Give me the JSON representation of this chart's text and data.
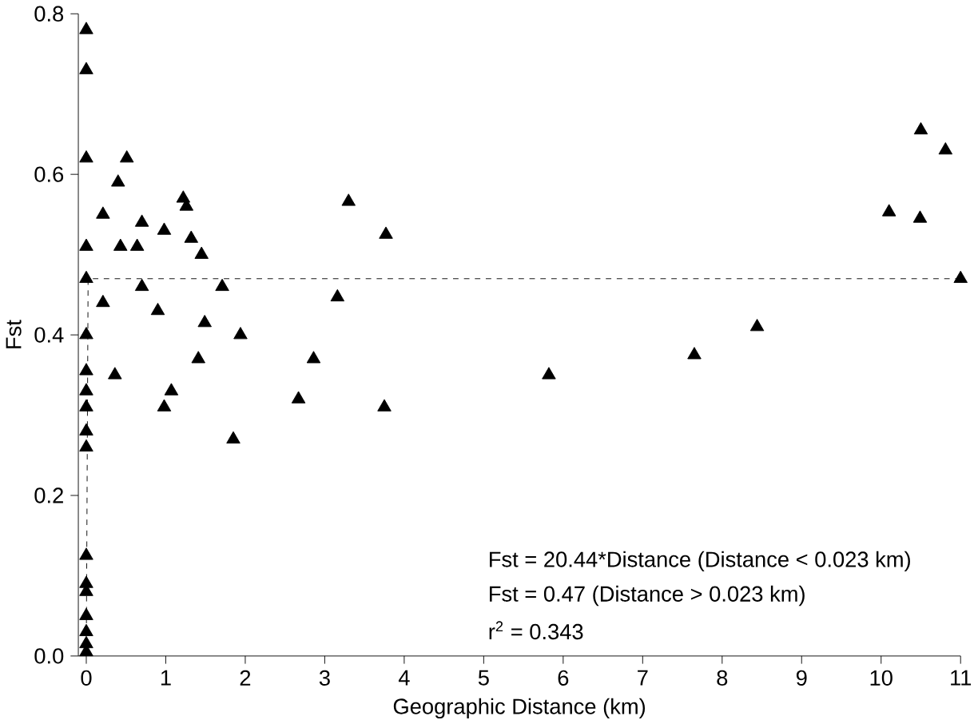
{
  "chart_data": {
    "type": "scatter",
    "xlabel": "Geographic Distance (km)",
    "ylabel": "Fst",
    "series": [
      {
        "color": "#000000",
        "marker": "triangle",
        "x": [
          0,
          0,
          0,
          0,
          0,
          0,
          0,
          0,
          0,
          0,
          0,
          0,
          0,
          0,
          0,
          0,
          0,
          0,
          0.21,
          0.21,
          0.36,
          0.4,
          0.51,
          0.43,
          0.64,
          0.7,
          0.7,
          0.9,
          0.98,
          0.98,
          1.07,
          1.22,
          1.26,
          1.32,
          1.45,
          1.41,
          1.49,
          1.71,
          1.94,
          1.85,
          2.67,
          2.86,
          3.3,
          3.77,
          3.16,
          3.75,
          5.82,
          10.81,
          10.5,
          10.1,
          10.49,
          11.0,
          8.44,
          7.65
        ],
        "values": [
          0.78,
          0.73,
          0.62,
          0.51,
          0.47,
          0.4,
          0.355,
          0.33,
          0.31,
          0.28,
          0.26,
          0.125,
          0.09,
          0.08,
          0.05,
          0.03,
          0.015,
          0.005,
          0.55,
          0.44,
          0.35,
          0.59,
          0.62,
          0.51,
          0.51,
          0.54,
          0.46,
          0.43,
          0.53,
          0.31,
          0.33,
          0.57,
          0.56,
          0.52,
          0.5,
          0.37,
          0.415,
          0.46,
          0.4,
          0.27,
          0.32,
          0.37,
          0.566,
          0.525,
          0.447,
          0.31,
          0.35,
          0.63,
          0.655,
          0.553,
          0.545,
          0.47,
          0.41,
          0.375
        ]
      },
      {
        "type": "line",
        "color": "#000000",
        "marker": "none",
        "line_style": "dashed",
        "x": [
          0,
          0.023,
          11
        ],
        "values": [
          0,
          0.47,
          0.47
        ]
      }
    ],
    "xlim": [
      -0.1,
      11
    ],
    "ylim": [
      0,
      0.8
    ],
    "xticks": [
      0,
      1,
      2,
      3,
      4,
      5,
      6,
      7,
      8,
      9,
      10,
      11
    ],
    "yticks": [
      {
        "value": 0,
        "label": "0.0"
      },
      {
        "value": 0.2,
        "label": "0.2"
      },
      {
        "value": 0.4,
        "label": "0.4"
      },
      {
        "value": 0.6,
        "label": "0.6"
      },
      {
        "value": 0.8,
        "label": "0.8"
      }
    ],
    "annotations": [
      "Fst = 20.44*Distance (Distance < 0.023 km)",
      "Fst = 0.47 (Distance > 0.023 km)",
      "r$^{2}$   = 0.343"
    ]
  }
}
